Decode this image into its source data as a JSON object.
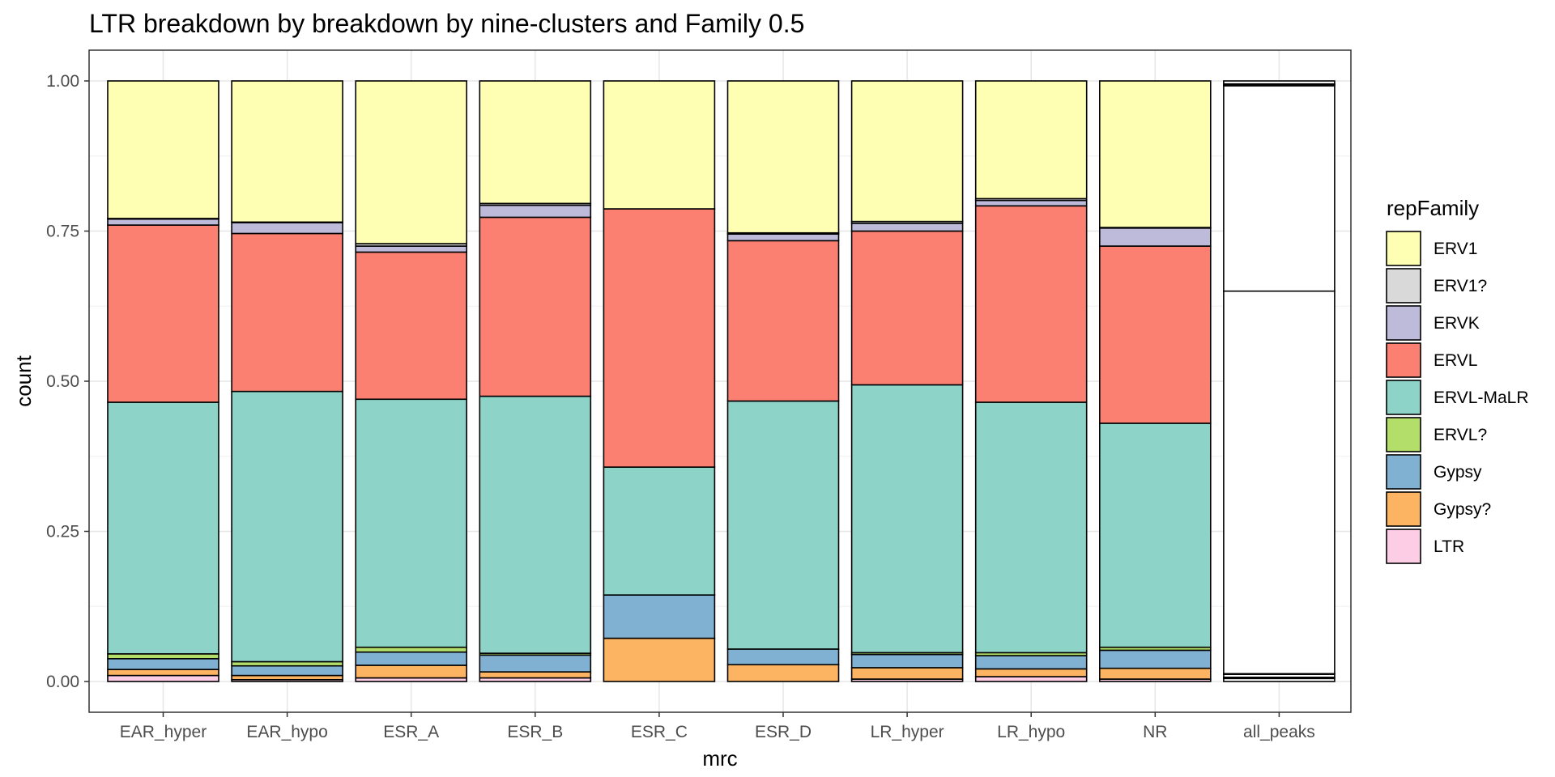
{
  "chart_data": {
    "type": "bar",
    "stacked": true,
    "title": "LTR breakdown by breakdown by nine-clusters and Family 0.5",
    "xlabel": "mrc",
    "ylabel": "count",
    "ylim": [
      0,
      1
    ],
    "y_ticks": [
      "0.00",
      "0.25",
      "0.50",
      "0.75",
      "1.00"
    ],
    "categories": [
      "EAR_hyper",
      "EAR_hypo",
      "ESR_A",
      "ESR_B",
      "ESR_C",
      "ESR_D",
      "LR_hyper",
      "LR_hypo",
      "NR",
      "all_peaks"
    ],
    "legend_title": "repFamily",
    "series": [
      {
        "name": "LTR",
        "color": "#FCCDE5",
        "values": [
          0.01,
          0.003,
          0.006,
          0.006,
          0,
          0,
          0.004,
          0.008,
          0.004,
          0.005
        ]
      },
      {
        "name": "Gypsy?",
        "color": "#FDB462",
        "values": [
          0.01,
          0.007,
          0.021,
          0.01,
          0.072,
          0.028,
          0.019,
          0.013,
          0.018,
          0.002
        ]
      },
      {
        "name": "Gypsy",
        "color": "#80B1D3",
        "values": [
          0.018,
          0.016,
          0.022,
          0.028,
          0.072,
          0.026,
          0.022,
          0.022,
          0.03,
          0.005
        ]
      },
      {
        "name": "ERVL?",
        "color": "#B3DE69",
        "values": [
          0.008,
          0.007,
          0.008,
          0.003,
          0,
          0,
          0.003,
          0.005,
          0.005,
          0.001
        ]
      },
      {
        "name": "ERVL-MaLR",
        "color": "#8DD3C7",
        "values": [
          0.419,
          0.45,
          0.413,
          0.428,
          0.213,
          0.413,
          0.446,
          0.417,
          0.373,
          0.637
        ]
      },
      {
        "name": "ERVL",
        "color": "#FB8072",
        "values": [
          0.295,
          0.263,
          0.245,
          0.298,
          0.43,
          0.267,
          0.256,
          0.327,
          0.295,
          0.342
        ]
      },
      {
        "name": "ERVK",
        "color": "#BEBADA",
        "values": [
          0.01,
          0.018,
          0.01,
          0.02,
          0,
          0.011,
          0.013,
          0.009,
          0.03,
          0.002
        ]
      },
      {
        "name": "ERV1?",
        "color": "#D9D9D9",
        "values": [
          0.001,
          0.001,
          0.004,
          0.003,
          0,
          0.002,
          0.003,
          0.003,
          0.001,
          0.001
        ]
      },
      {
        "name": "ERV1",
        "color": "#FFFFB3",
        "values": [
          0.229,
          0.235,
          0.271,
          0.204,
          0.213,
          0.253,
          0.234,
          0.196,
          0.244,
          0.005
        ]
      }
    ],
    "legend_order": [
      "ERV1",
      "ERV1?",
      "ERVK",
      "ERVL",
      "ERVL-MaLR",
      "ERVL?",
      "Gypsy",
      "Gypsy?",
      "LTR"
    ],
    "grid": true,
    "legend_position": "right"
  }
}
